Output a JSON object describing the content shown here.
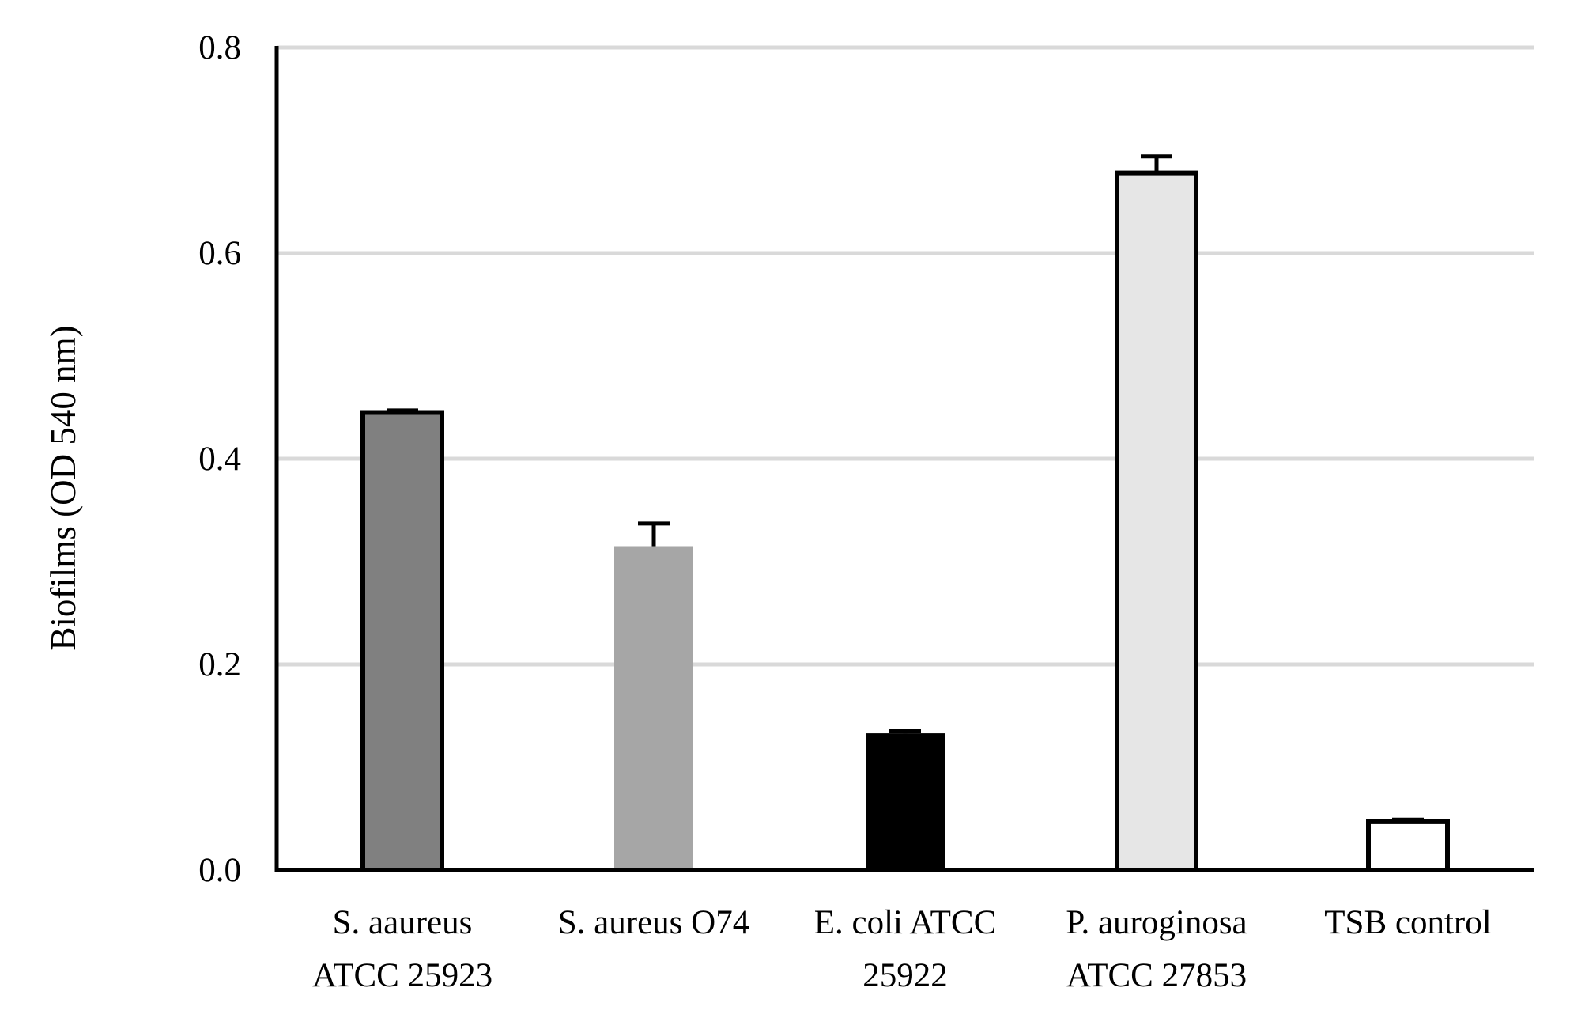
{
  "chart_data": {
    "type": "bar",
    "title": "",
    "xlabel": "",
    "ylabel": "Biofilms (OD 540 nm)",
    "ylim": [
      0,
      0.8
    ],
    "yticks": [
      "0.0",
      "0.2",
      "0.4",
      "0.6",
      "0.8"
    ],
    "grid": true,
    "legend": "none",
    "categories": [
      [
        "S. aaureus",
        "ATCC 25923"
      ],
      [
        "S. aureus O74"
      ],
      [
        "E. coli ATCC",
        "25922"
      ],
      [
        "P. auroginosa",
        "ATCC 27853"
      ],
      [
        "TSB control"
      ]
    ],
    "values": [
      0.445,
      0.315,
      0.133,
      0.678,
      0.047
    ],
    "errors": [
      0.002,
      0.022,
      0.002,
      0.016,
      0.002
    ],
    "bar_fills": [
      "#808080",
      "#a6a6a6",
      "#000000",
      "#e6e6e6",
      "#ffffff"
    ],
    "bar_outlined": [
      true,
      false,
      false,
      true,
      true
    ]
  }
}
